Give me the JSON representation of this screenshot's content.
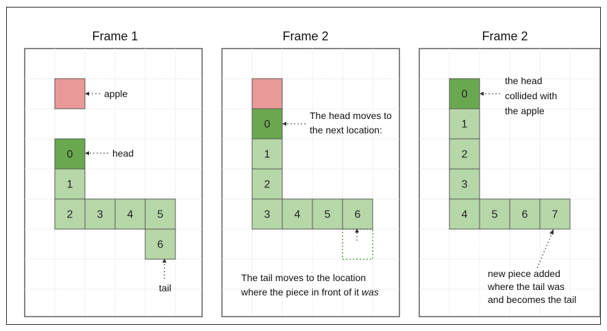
{
  "colors": {
    "apple": "#ea9999",
    "head": "#6aa84f",
    "body": "#b6d7a8",
    "old_tail_outline": "#7cbf6e"
  },
  "panels": [
    {
      "title": "Frame 1",
      "apple": {
        "col": 1,
        "row": 1
      },
      "cells": [
        {
          "label": "0",
          "kind": "head",
          "col": 1,
          "row": 3
        },
        {
          "label": "1",
          "kind": "body",
          "col": 1,
          "row": 4
        },
        {
          "label": "2",
          "kind": "body",
          "col": 1,
          "row": 5
        },
        {
          "label": "3",
          "kind": "body",
          "col": 2,
          "row": 5
        },
        {
          "label": "4",
          "kind": "body",
          "col": 3,
          "row": 5
        },
        {
          "label": "5",
          "kind": "body",
          "col": 4,
          "row": 5
        },
        {
          "label": "6",
          "kind": "body",
          "col": 4,
          "row": 6
        }
      ],
      "annotations": {
        "apple": "apple",
        "head": "head",
        "tail": "tail"
      }
    },
    {
      "title": "Frame 2",
      "apple": {
        "col": 1,
        "row": 1
      },
      "cells": [
        {
          "label": "0",
          "kind": "head",
          "col": 1,
          "row": 2
        },
        {
          "label": "1",
          "kind": "body",
          "col": 1,
          "row": 3
        },
        {
          "label": "2",
          "kind": "body",
          "col": 1,
          "row": 4
        },
        {
          "label": "3",
          "kind": "body",
          "col": 1,
          "row": 5
        },
        {
          "label": "4",
          "kind": "body",
          "col": 2,
          "row": 5
        },
        {
          "label": "5",
          "kind": "body",
          "col": 3,
          "row": 5
        },
        {
          "label": "6",
          "kind": "body",
          "col": 4,
          "row": 5
        }
      ],
      "old_tail": {
        "col": 4,
        "row": 6
      },
      "annotations": {
        "head_line1": "The head moves to",
        "head_line2": "the next location:",
        "tail_line1": "The tail moves to the location",
        "tail_line2_prefix": "where the piece in front of it ",
        "tail_line2_emphasis": "was"
      }
    },
    {
      "title": "Frame 2",
      "cells": [
        {
          "label": "0",
          "kind": "head",
          "col": 1,
          "row": 1
        },
        {
          "label": "1",
          "kind": "body",
          "col": 1,
          "row": 2
        },
        {
          "label": "2",
          "kind": "body",
          "col": 1,
          "row": 3
        },
        {
          "label": "3",
          "kind": "body",
          "col": 1,
          "row": 4
        },
        {
          "label": "4",
          "kind": "body",
          "col": 1,
          "row": 5
        },
        {
          "label": "5",
          "kind": "body",
          "col": 2,
          "row": 5
        },
        {
          "label": "6",
          "kind": "body",
          "col": 3,
          "row": 5
        },
        {
          "label": "7",
          "kind": "body",
          "col": 4,
          "row": 5
        }
      ],
      "annotations": {
        "head_line1": "the head",
        "head_line2": "collided with",
        "head_line3": "the apple",
        "new_line1": "new piece added",
        "new_line2": "where the tail was",
        "new_line3": "and becomes the tail"
      }
    }
  ]
}
